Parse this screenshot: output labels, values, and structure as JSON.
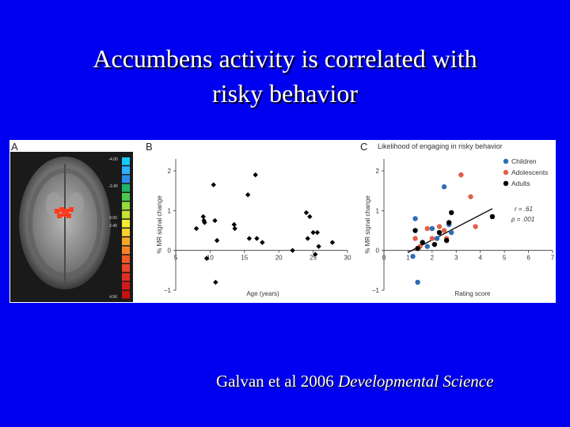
{
  "slide": {
    "title_line1": "Accumbens activity is correlated with",
    "title_line2": "risky behavior",
    "citation_text": "Galvan et al 2006 ",
    "citation_journal": "Developmental Science"
  },
  "panel_a": {
    "letter": "A",
    "scale_labels": [
      "-4.00",
      "-2.40",
      "0.00",
      "2.40",
      "4.56"
    ],
    "scale_colors": [
      "#16c9ff",
      "#2fb0ff",
      "#2c8de8",
      "#23b463",
      "#4bc84a",
      "#8fdb3a",
      "#c7e233",
      "#f3ef30",
      "#f8d12d",
      "#f7a72a",
      "#f6832a",
      "#f05b25",
      "#e8452a",
      "#e22d22",
      "#d11a1a",
      "#c51111"
    ],
    "activation_color": "#ff3b1f"
  },
  "chart_data": [
    {
      "type": "scatter",
      "panel": "B",
      "title": "",
      "xlabel": "Age (years)",
      "ylabel": "% MR signal change",
      "xlim": [
        5,
        30
      ],
      "ylim": [
        -1,
        2.3
      ],
      "xticks": [
        5,
        10,
        15,
        20,
        25,
        30
      ],
      "yticks": [
        -1,
        0,
        1,
        2
      ],
      "series": [
        {
          "color": "#000000",
          "points": [
            [
              8,
              0.55
            ],
            [
              9,
              0.85
            ],
            [
              9.1,
              0.75
            ],
            [
              9.2,
              0.7
            ],
            [
              9.5,
              -0.2
            ],
            [
              10.5,
              1.65
            ],
            [
              10.7,
              0.75
            ],
            [
              10.8,
              -0.8
            ],
            [
              11,
              0.25
            ],
            [
              13.5,
              0.65
            ],
            [
              13.6,
              0.55
            ],
            [
              15.5,
              1.4
            ],
            [
              15.7,
              0.3
            ],
            [
              16.6,
              1.9
            ],
            [
              16.8,
              0.3
            ],
            [
              17.6,
              0.2
            ],
            [
              22,
              0
            ],
            [
              24,
              0.95
            ],
            [
              24.2,
              0.3
            ],
            [
              24.5,
              0.85
            ],
            [
              25,
              0.45
            ],
            [
              25.3,
              -0.1
            ],
            [
              25.6,
              0.45
            ],
            [
              25.8,
              0.1
            ],
            [
              27.8,
              0.2
            ]
          ]
        }
      ]
    },
    {
      "type": "scatter",
      "panel": "C",
      "title": "Likelihood of engaging in risky behavior",
      "xlabel": "Rating score",
      "ylabel": "% MR signal change",
      "xlim": [
        0,
        7
      ],
      "ylim": [
        -1,
        2.3
      ],
      "xticks": [
        0,
        1,
        2,
        3,
        4,
        5,
        6,
        7
      ],
      "yticks": [
        -1,
        0,
        1,
        2
      ],
      "annotation_r": "r = .61",
      "annotation_p": "p = .001",
      "trend_line": [
        [
          1,
          -0.05
        ],
        [
          4.5,
          1.05
        ]
      ],
      "series": [
        {
          "name": "Children",
          "color": "#2c6db5",
          "points": [
            [
              1.2,
              -0.15
            ],
            [
              1.3,
              0.8
            ],
            [
              1.4,
              -0.8
            ],
            [
              1.8,
              0.1
            ],
            [
              2,
              0.55
            ],
            [
              2.2,
              0.3
            ],
            [
              2.5,
              1.6
            ],
            [
              2.7,
              0.65
            ],
            [
              2.8,
              0.45
            ]
          ]
        },
        {
          "name": "Adolescents",
          "color": "#e0604a",
          "points": [
            [
              1.3,
              0.3
            ],
            [
              1.5,
              0.1
            ],
            [
              1.8,
              0.55
            ],
            [
              2,
              0.3
            ],
            [
              2.3,
              0.6
            ],
            [
              2.5,
              0.5
            ],
            [
              2.6,
              0.3
            ],
            [
              3.2,
              1.9
            ],
            [
              3.6,
              1.35
            ],
            [
              3.8,
              0.6
            ]
          ]
        },
        {
          "name": "Adults",
          "color": "#000000",
          "points": [
            [
              1.3,
              0.5
            ],
            [
              1.4,
              0.05
            ],
            [
              1.6,
              0.2
            ],
            [
              2.1,
              0.15
            ],
            [
              2.3,
              0.45
            ],
            [
              2.6,
              0.25
            ],
            [
              2.7,
              0.7
            ],
            [
              2.8,
              0.95
            ],
            [
              4.5,
              0.85
            ]
          ]
        }
      ]
    }
  ]
}
